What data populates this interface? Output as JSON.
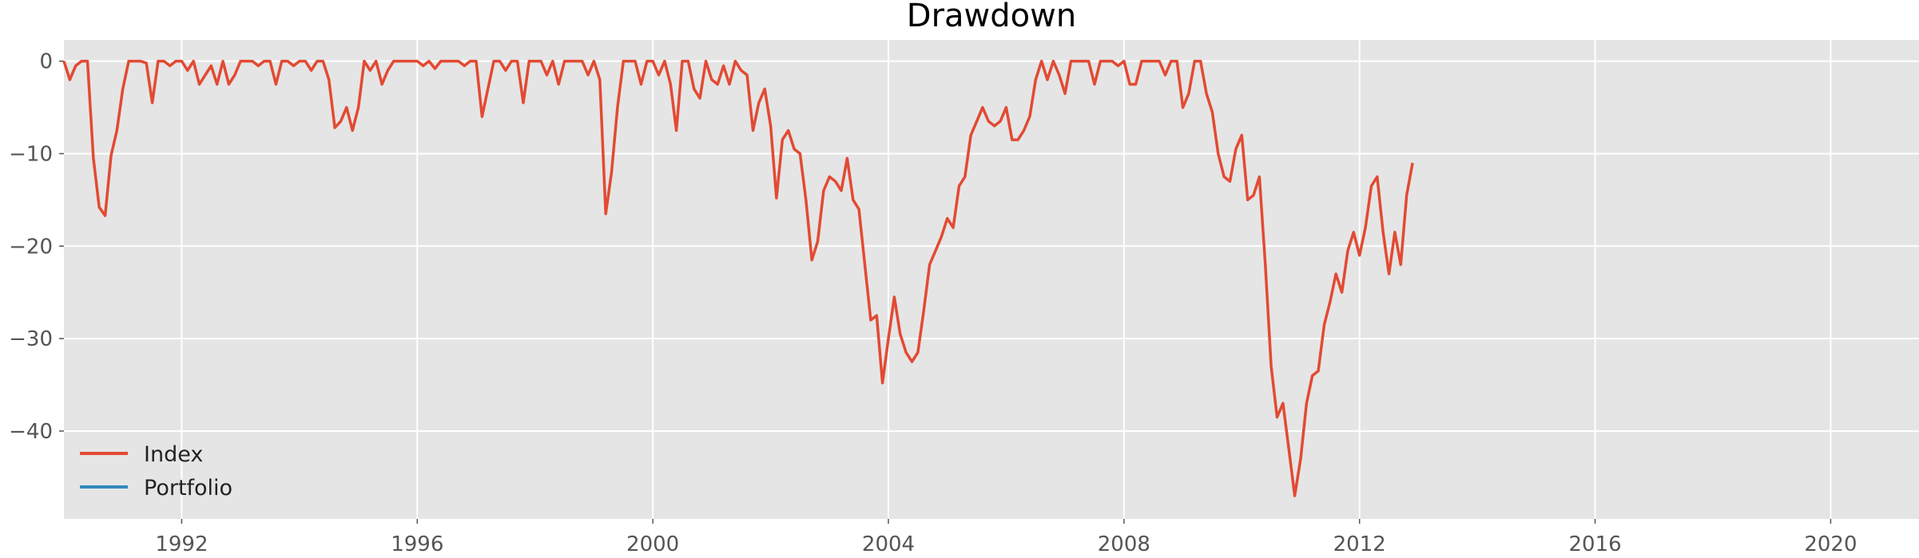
{
  "chart_data": {
    "type": "line",
    "title": "Drawdown",
    "xlabel": "",
    "ylabel": "",
    "xlim": [
      1990.0,
      2021.5
    ],
    "ylim": [
      -49.5,
      2.3
    ],
    "x_ticks": [
      1992,
      1996,
      2000,
      2004,
      2008,
      2012,
      2016,
      2020
    ],
    "y_ticks": [
      0,
      -10,
      -20,
      -30,
      -40
    ],
    "y_tick_labels": [
      "0",
      "−10",
      "−20",
      "−30",
      "−40"
    ],
    "grid": true,
    "legend_position": "lower-left",
    "background": "#e5e5e5",
    "series": [
      {
        "name": "Index",
        "color": "#E24A33",
        "points": [
          [
            1990.0,
            0
          ],
          [
            1990.1,
            -2.0
          ],
          [
            1990.2,
            -0.5
          ],
          [
            1990.3,
            0
          ],
          [
            1990.4,
            0
          ],
          [
            1990.5,
            -10.5
          ],
          [
            1990.6,
            -15.8
          ],
          [
            1990.7,
            -16.7
          ],
          [
            1990.8,
            -10.2
          ],
          [
            1990.9,
            -7.5
          ],
          [
            1991.0,
            -3.0
          ],
          [
            1991.1,
            0
          ],
          [
            1991.2,
            0
          ],
          [
            1991.3,
            0
          ],
          [
            1991.4,
            -0.2
          ],
          [
            1991.5,
            -4.5
          ],
          [
            1991.6,
            0
          ],
          [
            1991.7,
            0
          ],
          [
            1991.8,
            -0.5
          ],
          [
            1991.9,
            0
          ],
          [
            1992.0,
            0
          ],
          [
            1992.1,
            -1.0
          ],
          [
            1992.2,
            0
          ],
          [
            1992.3,
            -2.5
          ],
          [
            1992.4,
            -1.5
          ],
          [
            1992.5,
            -0.5
          ],
          [
            1992.6,
            -2.5
          ],
          [
            1992.7,
            0
          ],
          [
            1992.8,
            -2.5
          ],
          [
            1992.9,
            -1.5
          ],
          [
            1993.0,
            0
          ],
          [
            1993.2,
            0
          ],
          [
            1993.3,
            -0.5
          ],
          [
            1993.4,
            0
          ],
          [
            1993.5,
            0
          ],
          [
            1993.6,
            -2.5
          ],
          [
            1993.7,
            0
          ],
          [
            1993.8,
            0
          ],
          [
            1993.9,
            -0.5
          ],
          [
            1994.0,
            0
          ],
          [
            1994.1,
            0
          ],
          [
            1994.2,
            -1.0
          ],
          [
            1994.3,
            0
          ],
          [
            1994.4,
            0
          ],
          [
            1994.5,
            -2.0
          ],
          [
            1994.6,
            -7.2
          ],
          [
            1994.7,
            -6.5
          ],
          [
            1994.8,
            -5.0
          ],
          [
            1994.9,
            -7.5
          ],
          [
            1995.0,
            -5.0
          ],
          [
            1995.1,
            0
          ],
          [
            1995.2,
            -1.0
          ],
          [
            1995.3,
            0
          ],
          [
            1995.4,
            -2.5
          ],
          [
            1995.5,
            -1.0
          ],
          [
            1995.6,
            0
          ],
          [
            1995.8,
            0
          ],
          [
            1996.0,
            0
          ],
          [
            1996.1,
            -0.5
          ],
          [
            1996.2,
            0
          ],
          [
            1996.3,
            -0.8
          ],
          [
            1996.4,
            0
          ],
          [
            1996.5,
            0
          ],
          [
            1996.7,
            0
          ],
          [
            1996.8,
            -0.5
          ],
          [
            1996.9,
            0
          ],
          [
            1997.0,
            0
          ],
          [
            1997.1,
            -6.0
          ],
          [
            1997.2,
            -3.0
          ],
          [
            1997.3,
            0
          ],
          [
            1997.4,
            0
          ],
          [
            1997.5,
            -1.0
          ],
          [
            1997.6,
            0
          ],
          [
            1997.7,
            0
          ],
          [
            1997.8,
            -4.5
          ],
          [
            1997.9,
            0
          ],
          [
            1998.0,
            0
          ],
          [
            1998.1,
            0
          ],
          [
            1998.2,
            -1.5
          ],
          [
            1998.3,
            0
          ],
          [
            1998.4,
            -2.5
          ],
          [
            1998.5,
            0
          ],
          [
            1998.6,
            0
          ],
          [
            1998.7,
            0
          ],
          [
            1998.8,
            0
          ],
          [
            1998.9,
            -1.5
          ],
          [
            1999.0,
            0
          ],
          [
            1999.1,
            -2.0
          ],
          [
            1999.2,
            -16.5
          ],
          [
            1999.3,
            -12.0
          ],
          [
            1999.4,
            -5.0
          ],
          [
            1999.5,
            0
          ],
          [
            1999.6,
            0
          ],
          [
            1999.7,
            0
          ],
          [
            1999.8,
            -2.5
          ],
          [
            1999.9,
            0
          ],
          [
            2000.0,
            0
          ],
          [
            2000.1,
            -1.5
          ],
          [
            2000.2,
            0
          ],
          [
            2000.3,
            -2.5
          ],
          [
            2000.4,
            -7.5
          ],
          [
            2000.5,
            0
          ],
          [
            2000.6,
            0
          ],
          [
            2000.7,
            -3.0
          ],
          [
            2000.8,
            -4.0
          ],
          [
            2000.9,
            0
          ],
          [
            2001.0,
            -2.0
          ],
          [
            2001.1,
            -2.5
          ],
          [
            2001.2,
            -0.5
          ],
          [
            2001.3,
            -2.5
          ],
          [
            2001.4,
            0
          ],
          [
            2001.5,
            -1.0
          ],
          [
            2001.6,
            -1.5
          ],
          [
            2001.7,
            -7.5
          ],
          [
            2001.8,
            -4.5
          ],
          [
            2001.9,
            -3.0
          ],
          [
            2002.0,
            -7.0
          ],
          [
            2002.1,
            -14.8
          ],
          [
            2002.2,
            -8.5
          ],
          [
            2002.3,
            -7.5
          ],
          [
            2002.4,
            -9.5
          ],
          [
            2002.5,
            -10.0
          ],
          [
            2002.6,
            -15.0
          ],
          [
            2002.7,
            -21.5
          ],
          [
            2002.8,
            -19.5
          ],
          [
            2002.9,
            -14.0
          ],
          [
            2003.0,
            -12.5
          ],
          [
            2003.1,
            -13.0
          ],
          [
            2003.2,
            -14.0
          ],
          [
            2003.3,
            -10.5
          ],
          [
            2003.4,
            -15.0
          ],
          [
            2003.5,
            -16.0
          ],
          [
            2003.6,
            -22.0
          ],
          [
            2003.7,
            -28.0
          ],
          [
            2003.8,
            -27.5
          ],
          [
            2003.9,
            -34.8
          ],
          [
            2004.0,
            -30.0
          ],
          [
            2004.1,
            -25.5
          ],
          [
            2004.2,
            -29.5
          ],
          [
            2004.3,
            -31.5
          ],
          [
            2004.4,
            -32.5
          ],
          [
            2004.5,
            -31.5
          ],
          [
            2004.6,
            -27.0
          ],
          [
            2004.7,
            -22.0
          ],
          [
            2004.8,
            -20.5
          ],
          [
            2004.9,
            -19.0
          ],
          [
            2005.0,
            -17.0
          ],
          [
            2005.1,
            -18.0
          ],
          [
            2005.2,
            -13.5
          ],
          [
            2005.3,
            -12.5
          ],
          [
            2005.4,
            -8.0
          ],
          [
            2005.5,
            -6.5
          ],
          [
            2005.6,
            -5.0
          ],
          [
            2005.7,
            -6.5
          ],
          [
            2005.8,
            -7.0
          ],
          [
            2005.9,
            -6.5
          ],
          [
            2006.0,
            -5.0
          ],
          [
            2006.1,
            -8.5
          ],
          [
            2006.2,
            -8.5
          ],
          [
            2006.3,
            -7.5
          ],
          [
            2006.4,
            -6.0
          ],
          [
            2006.5,
            -2.0
          ],
          [
            2006.6,
            0
          ],
          [
            2006.7,
            -2.0
          ],
          [
            2006.8,
            0
          ],
          [
            2006.9,
            -1.5
          ],
          [
            2007.0,
            -3.5
          ],
          [
            2007.1,
            0
          ],
          [
            2007.3,
            0
          ],
          [
            2007.4,
            0
          ],
          [
            2007.5,
            -2.5
          ],
          [
            2007.6,
            0
          ],
          [
            2007.7,
            0
          ],
          [
            2007.8,
            0
          ],
          [
            2007.9,
            -0.5
          ],
          [
            2008.0,
            0
          ],
          [
            2008.1,
            -2.5
          ],
          [
            2008.2,
            -2.5
          ],
          [
            2008.3,
            0
          ],
          [
            2008.5,
            0
          ],
          [
            2008.6,
            0
          ],
          [
            2008.7,
            -1.5
          ],
          [
            2008.8,
            0
          ],
          [
            2008.9,
            0
          ],
          [
            2009.0,
            -5.0
          ],
          [
            2009.1,
            -3.5
          ],
          [
            2009.2,
            0
          ],
          [
            2009.3,
            0
          ],
          [
            2009.4,
            -3.5
          ],
          [
            2009.5,
            -5.5
          ],
          [
            2009.6,
            -10.0
          ],
          [
            2009.7,
            -12.5
          ],
          [
            2009.8,
            -13.0
          ],
          [
            2009.9,
            -9.5
          ],
          [
            2010.0,
            -8.0
          ],
          [
            2010.1,
            -15.0
          ],
          [
            2010.2,
            -14.5
          ],
          [
            2010.3,
            -12.5
          ],
          [
            2010.4,
            -22.0
          ],
          [
            2010.5,
            -33.0
          ],
          [
            2010.6,
            -38.5
          ],
          [
            2010.7,
            -37.0
          ],
          [
            2010.8,
            -42.0
          ],
          [
            2010.9,
            -47.0
          ],
          [
            2011.0,
            -43.0
          ],
          [
            2011.1,
            -37.0
          ],
          [
            2011.2,
            -34.0
          ],
          [
            2011.3,
            -33.5
          ],
          [
            2011.4,
            -28.5
          ],
          [
            2011.5,
            -26.0
          ],
          [
            2011.6,
            -23.0
          ],
          [
            2011.7,
            -25.0
          ],
          [
            2011.8,
            -20.5
          ],
          [
            2011.9,
            -18.5
          ],
          [
            2012.0,
            -21.0
          ],
          [
            2012.1,
            -18.0
          ],
          [
            2012.2,
            -13.5
          ],
          [
            2012.3,
            -12.5
          ],
          [
            2012.4,
            -18.5
          ],
          [
            2012.5,
            -23.0
          ],
          [
            2012.6,
            -18.5
          ],
          [
            2012.7,
            -22.0
          ],
          [
            2012.8,
            -14.5
          ],
          [
            2012.9,
            -11.0
          ]
        ]
      },
      {
        "name": "Portfolio",
        "color": "#348ABD",
        "points": []
      }
    ]
  }
}
